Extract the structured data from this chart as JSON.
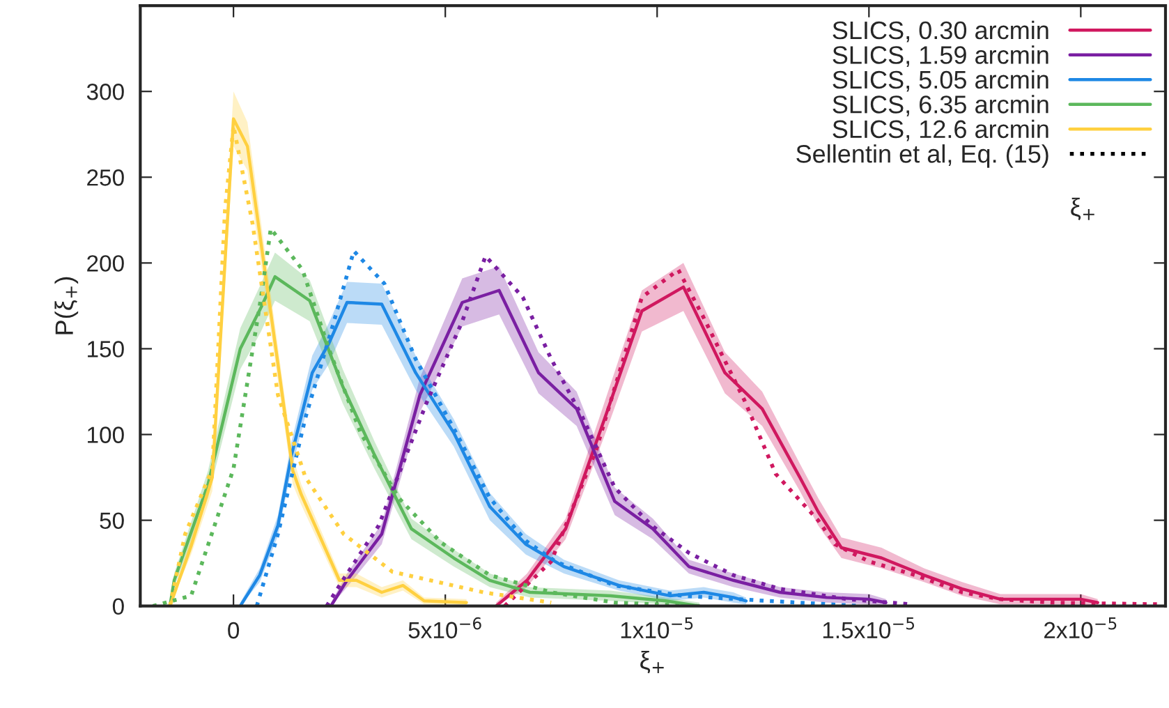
{
  "chart_data": {
    "type": "line",
    "xlabel": "ξ$_{+}$",
    "ylabel": "P(ξ$_{+}$)",
    "xlim": [
      -2.2e-06,
      2.2e-05
    ],
    "ylim": [
      0,
      350
    ],
    "xticks": [
      0,
      {
        "value": 5e-06,
        "label": "5x10$^{−6}$"
      },
      {
        "value": 1e-05,
        "label": "1x10$^{−5}$"
      },
      {
        "value": 1.5e-05,
        "label": "1.5x10$^{−5}$"
      },
      {
        "value": 2e-05,
        "label": "2x10$^{−5}$"
      }
    ],
    "yticks": [
      0,
      50,
      100,
      150,
      200,
      250,
      300
    ],
    "legend": "top right",
    "grid": false,
    "line_style": "solid",
    "annotations": [
      "Sellentin et al, Eq. (15)",
      "ξ$_{+}$"
    ],
    "series": [
      {
        "name": "SLICS, 0.30 arcmin",
        "color": "#d0185f",
        "x": [
          6.2e-06,
          6.93e-06,
          7.84e-06,
          8.8e-06,
          9.64e-06,
          1.062e-05,
          1.16e-05,
          1.248e-05,
          1.337e-05,
          1.38e-05,
          1.435e-05,
          1.53e-05,
          1.63e-05,
          1.72e-05,
          1.81e-05,
          1.91e-05,
          2e-05,
          2.04e-05
        ],
        "values": [
          0,
          15,
          45,
          112,
          172,
          186,
          136,
          115,
          75,
          55,
          34,
          28,
          18,
          10,
          4,
          4,
          4,
          2
        ],
        "lower": [
          0,
          11,
          39,
          102,
          160,
          172,
          124,
          105,
          67,
          47,
          28,
          22,
          14,
          6,
          1,
          1,
          1,
          0
        ],
        "upper": [
          2,
          19,
          51,
          122,
          184,
          200,
          148,
          125,
          83,
          63,
          40,
          34,
          22,
          14,
          7,
          7,
          7,
          4
        ]
      },
      {
        "name": "SLICS, 1.59 arcmin",
        "color": "#7a1fa2",
        "x": [
          2.3e-06,
          2.68e-06,
          3.5e-06,
          4.4e-06,
          5.4e-06,
          6.27e-06,
          7.2e-06,
          8.1e-06,
          9e-06,
          9.9e-06,
          1.075e-05,
          1.18e-05,
          1.29e-05,
          1.4e-05,
          1.5e-05,
          1.54e-05
        ],
        "values": [
          0,
          15,
          42,
          123,
          177,
          184,
          136,
          115,
          61,
          45,
          23,
          15,
          8,
          5,
          4,
          2
        ],
        "lower": [
          0,
          11,
          36,
          113,
          163,
          170,
          124,
          105,
          53,
          39,
          19,
          11,
          5,
          2,
          1,
          0
        ],
        "upper": [
          2,
          19,
          48,
          133,
          191,
          198,
          148,
          125,
          69,
          51,
          27,
          19,
          11,
          8,
          7,
          4
        ]
      },
      {
        "name": "SLICS, 5.05 arcmin",
        "color": "#1e88e5",
        "x": [
          1.6e-07,
          6.2e-07,
          1.05e-06,
          1.37e-06,
          1.86e-06,
          2.25e-06,
          2.68e-06,
          3.5e-06,
          4.3e-06,
          5.2e-06,
          6.05e-06,
          6.9e-06,
          7.8e-06,
          9.1e-06,
          1.03e-05,
          1.11e-05,
          1.18e-05,
          1.21e-05
        ],
        "values": [
          0,
          18,
          47,
          88,
          136,
          153,
          177,
          176,
          136,
          101,
          58,
          36,
          23,
          12,
          6,
          8,
          5,
          3
        ],
        "lower": [
          0,
          14,
          41,
          80,
          126,
          141,
          165,
          164,
          126,
          93,
          50,
          30,
          19,
          9,
          3,
          5,
          2,
          1
        ],
        "upper": [
          2,
          22,
          53,
          96,
          146,
          165,
          189,
          188,
          146,
          109,
          66,
          42,
          27,
          15,
          9,
          11,
          8,
          5
        ]
      },
      {
        "name": "SLICS, 6.35 arcmin",
        "color": "#5cb85c",
        "x": [
          -1.5e-06,
          -1.4e-06,
          -6e-07,
          1.6e-07,
          6.5e-07,
          9.8e-07,
          1.8e-06,
          2.58e-06,
          3.33e-06,
          4.2e-06,
          5.2e-06,
          6.05e-06,
          7e-06,
          8.9e-06,
          1.02e-05,
          1.1e-05
        ],
        "values": [
          0,
          15,
          71,
          150,
          174,
          192,
          178,
          128,
          88,
          45,
          28,
          15,
          8,
          6,
          3,
          0
        ],
        "lower": [
          0,
          11,
          63,
          138,
          160,
          178,
          166,
          118,
          80,
          39,
          23,
          11,
          5,
          3,
          1,
          0
        ],
        "upper": [
          2,
          19,
          79,
          162,
          188,
          206,
          190,
          138,
          96,
          51,
          33,
          19,
          11,
          9,
          5,
          2
        ]
      },
      {
        "name": "SLICS, 12.6 arcmin",
        "color": "#ffd040",
        "x": [
          -1.5e-06,
          -1e-06,
          -5e-07,
          0,
          3.3e-07,
          1e-06,
          1.4e-06,
          1.6e-06,
          2.5e-06,
          2.9e-06,
          3.5e-06,
          4e-06,
          4.5e-06,
          5.5e-06
        ],
        "values": [
          0,
          35,
          75,
          284,
          268,
          150,
          79,
          65,
          15,
          15,
          8,
          12,
          3,
          2
        ],
        "lower": [
          0,
          30,
          67,
          268,
          254,
          140,
          71,
          59,
          11,
          11,
          5,
          9,
          1,
          0
        ],
        "upper": [
          2,
          40,
          83,
          300,
          282,
          160,
          87,
          71,
          19,
          19,
          11,
          15,
          5,
          4
        ]
      },
      {
        "line_style": "dotted",
        "color": "#d0185f",
        "x": [
          6.4e-06,
          7.5e-06,
          8.56e-06,
          9.64e-06,
          1.05e-05,
          1.108e-05,
          1.206e-05,
          1.28e-05,
          1.38e-05,
          1.42e-05,
          1.5e-05,
          1.61e-05,
          1.72e-05,
          1.81e-05,
          1.93e-05,
          2.19e-05
        ],
        "values": [
          0,
          26,
          91,
          180,
          196,
          169,
          120,
          77,
          50,
          36,
          26,
          18,
          8,
          4,
          2,
          1
        ]
      },
      {
        "line_style": "dotted",
        "color": "#7a1fa2",
        "x": [
          2.2e-06,
          2.58e-06,
          3.43e-06,
          4.55e-06,
          5.4e-06,
          5.95e-06,
          6.83e-06,
          7.5e-06,
          8.24e-06,
          9e-06,
          9.87e-06,
          1.075e-05,
          1.18e-05,
          1.29e-05,
          1.45e-05,
          1.6e-05
        ],
        "values": [
          0,
          15,
          47,
          118,
          166,
          204,
          180,
          144,
          110,
          69,
          47,
          31,
          18,
          10,
          4,
          1
        ]
      },
      {
        "line_style": "dotted",
        "color": "#1e88e5",
        "x": [
          5.5e-07,
          1.05e-06,
          1.7e-06,
          2.35e-06,
          2.84e-06,
          3.56e-06,
          4.3e-06,
          5.3e-06,
          6.05e-06,
          6.9e-06,
          7.6e-06,
          9e-06,
          1.06e-05,
          1.26e-05,
          1.48e-05
        ],
        "values": [
          0,
          42,
          110,
          164,
          207,
          188,
          144,
          99,
          63,
          38,
          26,
          12,
          6,
          3,
          0
        ]
      },
      {
        "line_style": "dotted",
        "color": "#5cb85c",
        "x": [
          -1.9e-06,
          -1e-06,
          0,
          6.5e-07,
          8.8e-07,
          1.63e-06,
          2.25e-06,
          3e-06,
          3.9e-06,
          4.9e-06,
          6.05e-06,
          7.5e-06,
          9e-06,
          1.1e-05
        ],
        "values": [
          0,
          6,
          80,
          180,
          220,
          196,
          150,
          101,
          63,
          37,
          18,
          8,
          2,
          0
        ]
      },
      {
        "line_style": "dotted",
        "color": "#ffd040",
        "x": [
          -1.5e-06,
          -1.14e-06,
          -5e-07,
          -2e-07,
          0,
          4.5e-07,
          1.05e-06,
          1.7e-06,
          2.6e-06,
          3.75e-06,
          5.9e-06,
          7.5e-06
        ],
        "values": [
          0,
          42,
          80,
          231,
          280,
          223,
          123,
          75,
          42,
          20,
          8,
          2
        ]
      }
    ]
  }
}
